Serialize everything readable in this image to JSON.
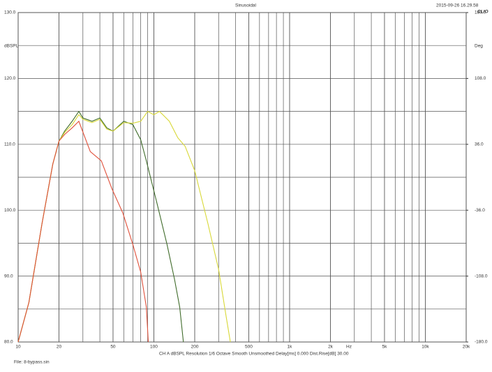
{
  "chart_data": {
    "type": "line",
    "title": "Sinusoidal",
    "timestamp": "2015-09-26 16.29.58",
    "logo": "CLIO",
    "y_label": "dBSPL",
    "y2_label": "Deg",
    "x_unit": "Hz",
    "footer": "CH A  dBSPL  Resolution 1/6 Octave  Smooth Unsmoothed  Delay[ms] 0.000  Dist.Rise[dB] 30.00",
    "file": "File: 8-bypass.sin",
    "log_x": true,
    "grid": true,
    "xlim": [
      10,
      20000
    ],
    "xticks": [
      10,
      20,
      50,
      100,
      200,
      500,
      {
        "value": 1000,
        "label": "1k"
      },
      {
        "value": 2000,
        "label": "2k"
      },
      {
        "value": 5000,
        "label": "5k"
      },
      {
        "value": 10000,
        "label": "10k"
      },
      {
        "value": 20000,
        "label": "20k"
      }
    ],
    "ylim": [
      80,
      130
    ],
    "yticks": [
      {
        "value": 80,
        "label": "80.0"
      },
      {
        "value": 90,
        "label": "90.0"
      },
      {
        "value": 100,
        "label": "100.0"
      },
      {
        "value": 110,
        "label": "110.0"
      },
      {
        "value": 120,
        "label": "120.0"
      },
      {
        "value": 130,
        "label": "130.0"
      }
    ],
    "y2lim": [
      -180,
      180
    ],
    "y2ticks": [
      {
        "value": -180,
        "label": "-180.0"
      },
      {
        "value": -108,
        "label": "-108.0"
      },
      {
        "value": -36,
        "label": "-36.0"
      },
      {
        "value": 36,
        "label": "36.0"
      },
      {
        "value": 108,
        "label": "108.0"
      },
      {
        "value": 180,
        "label": "180.0"
      }
    ],
    "series": [
      {
        "color": "#3f6b2a",
        "x": [
          10,
          12,
          15,
          18,
          20,
          22,
          25,
          28,
          30,
          35,
          40,
          45,
          50,
          60,
          70,
          80,
          88,
          105,
          125,
          142,
          155,
          165
        ],
        "values": [
          80,
          86,
          98,
          107,
          110.5,
          112,
          113.5,
          115,
          114,
          113.5,
          114,
          112.5,
          112,
          113.5,
          113,
          110.7,
          107.5,
          101.2,
          94.8,
          89.5,
          85.3,
          80
        ]
      },
      {
        "color": "#d8d838",
        "x": [
          10,
          12,
          15,
          18,
          20,
          22,
          25,
          28,
          30,
          35,
          40,
          45,
          50,
          60,
          70,
          80,
          90,
          100,
          110,
          130,
          150,
          170,
          200,
          250,
          300,
          340,
          366
        ],
        "values": [
          80,
          86,
          98,
          107,
          110.5,
          111.8,
          113,
          114.5,
          113.8,
          113.3,
          113.8,
          112.3,
          112,
          113.3,
          113.2,
          113.5,
          115,
          114.5,
          115,
          113.5,
          111,
          109.7,
          106,
          98,
          91,
          84,
          80
        ]
      },
      {
        "color": "#e0503a",
        "x": [
          10,
          12,
          15,
          18,
          20,
          22,
          25,
          28,
          34,
          41,
          49,
          59,
          70,
          80,
          88,
          91
        ],
        "values": [
          80,
          86,
          98,
          107,
          110.5,
          111.5,
          112.5,
          113.5,
          108.9,
          107.5,
          103.3,
          99.6,
          94.8,
          90.6,
          85.3,
          80
        ]
      }
    ]
  }
}
